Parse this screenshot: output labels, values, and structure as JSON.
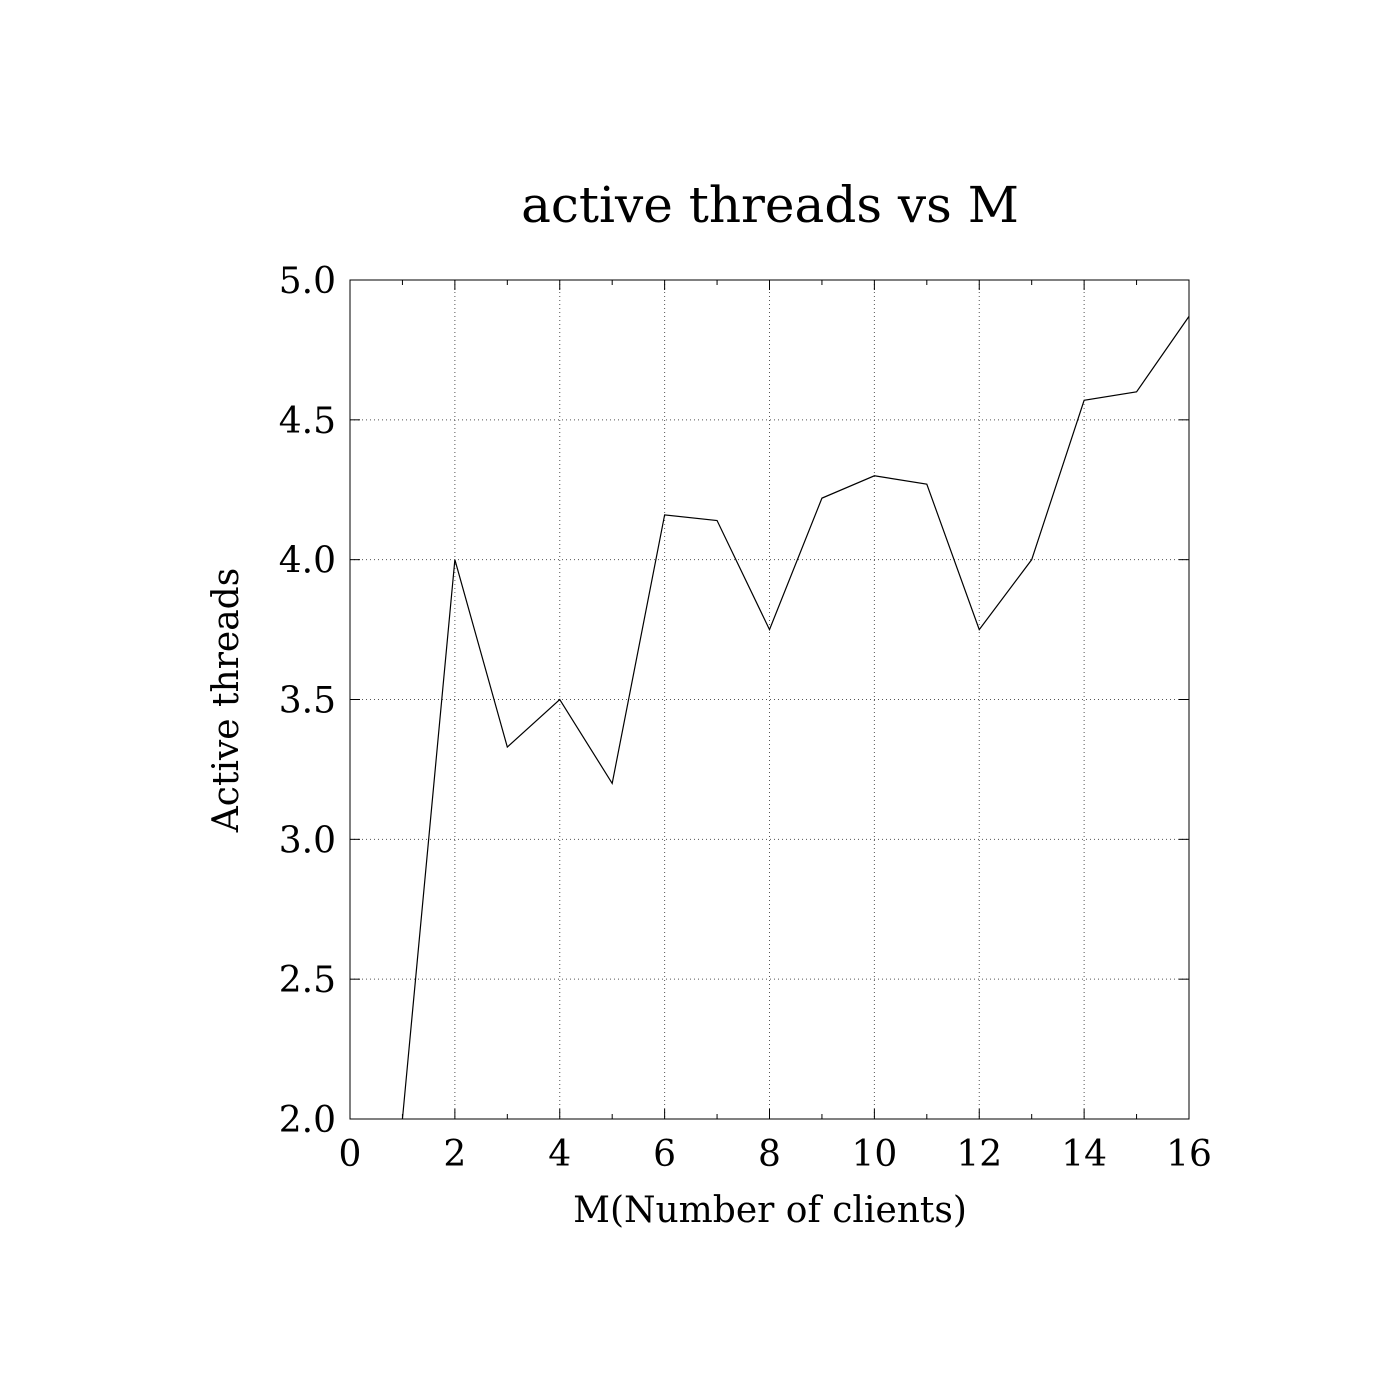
{
  "chart_data": {
    "type": "line",
    "title": "active threads vs M",
    "xlabel": "M(Number of clients)",
    "ylabel": "Active threads",
    "xlim": [
      0,
      16
    ],
    "ylim": [
      2.0,
      5.0
    ],
    "xticks": [
      0,
      2,
      4,
      6,
      8,
      10,
      12,
      14,
      16
    ],
    "xtick_labels": [
      "0",
      "2",
      "4",
      "6",
      "8",
      "10",
      "12",
      "14",
      "16"
    ],
    "yticks": [
      2.0,
      2.5,
      3.0,
      3.5,
      4.0,
      4.5,
      5.0
    ],
    "ytick_labels": [
      "2.0",
      "2.5",
      "3.0",
      "3.5",
      "4.0",
      "4.5",
      "5.0"
    ],
    "grid": true,
    "series": [
      {
        "x": [
          1,
          2,
          3,
          4,
          5,
          6,
          7,
          8,
          9,
          10,
          11,
          12,
          13,
          14,
          15,
          16
        ],
        "y": [
          2.0,
          4.0,
          3.33,
          3.5,
          3.2,
          4.16,
          4.14,
          3.75,
          4.22,
          4.3,
          4.27,
          3.75,
          4.0,
          4.57,
          4.6,
          4.87
        ]
      }
    ]
  }
}
